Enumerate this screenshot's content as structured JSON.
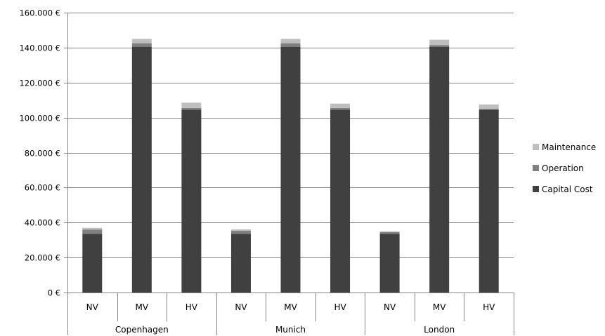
{
  "chart_data": {
    "type": "bar",
    "stacked": true,
    "groups": [
      "Copenhagen",
      "Munich",
      "London"
    ],
    "categories": [
      "NV",
      "MV",
      "HV",
      "NV",
      "MV",
      "HV",
      "NV",
      "MV",
      "HV"
    ],
    "series": [
      {
        "name": "Capital Cost",
        "color": "#404040",
        "values": [
          33500,
          140500,
          104500,
          33500,
          140500,
          104500,
          33500,
          140500,
          104500
        ]
      },
      {
        "name": "Operation",
        "color": "#808080",
        "values": [
          2500,
          2000,
          1000,
          1800,
          2000,
          1000,
          1000,
          1000,
          500
        ]
      },
      {
        "name": "Maintenance",
        "color": "#bfbfbf",
        "values": [
          1000,
          2500,
          3000,
          800,
          2500,
          2500,
          500,
          3000,
          2500
        ]
      }
    ],
    "ylim": [
      0,
      160000
    ],
    "yticks": [
      0,
      20000,
      40000,
      60000,
      80000,
      100000,
      120000,
      140000,
      160000
    ],
    "ytick_labels": [
      "0 €",
      "20.000 €",
      "40.000 €",
      "60.000 €",
      "80.000 €",
      "100.000 €",
      "120.000 €",
      "140.000 €",
      "160.000 €"
    ],
    "legend_position": "right",
    "legend_order": [
      "Maintenance",
      "Operation",
      "Capital Cost"
    ],
    "grid": true,
    "title": "",
    "xlabel": "",
    "ylabel": ""
  }
}
